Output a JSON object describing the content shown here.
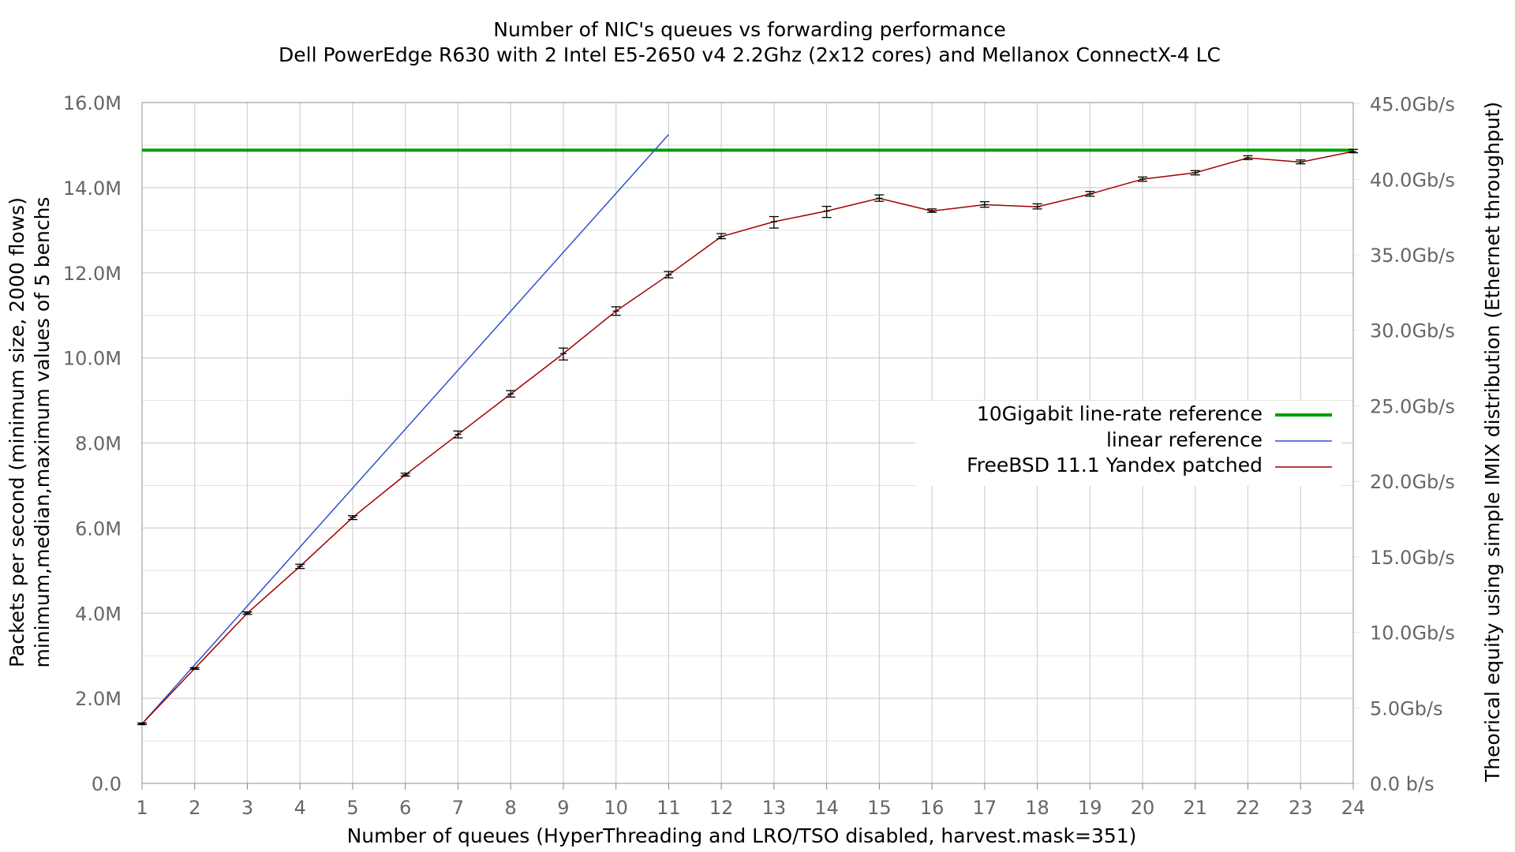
{
  "chart_data": {
    "type": "line",
    "title": "Number of NIC's queues vs forwarding performance",
    "subtitle": "Dell PowerEdge R630 with 2 Intel E5-2650 v4 2.2Ghz (2x12 cores) and Mellanox ConnectX-4 LC",
    "xlabel": "Number of queues (HyperThreading and LRO/TSO disabled, harvest.mask=351)",
    "ylabel": "Packets per second (minimum size, 2000 flows)",
    "ylabel2": "minimum,median,maximum values of 5 benchs",
    "y2label": "Theorical equity using simple IMIX distribution (Ethernet throughput)",
    "x_ticks": [
      "1",
      "2",
      "3",
      "4",
      "5",
      "6",
      "7",
      "8",
      "9",
      "10",
      "11",
      "12",
      "13",
      "14",
      "15",
      "16",
      "17",
      "18",
      "19",
      "20",
      "21",
      "22",
      "23",
      "24"
    ],
    "y_ticks": [
      "0.0",
      "2.0M",
      "4.0M",
      "6.0M",
      "8.0M",
      "10.0M",
      "12.0M",
      "14.0M",
      "16.0M"
    ],
    "y2_ticks": [
      "0.0 b/s",
      "5.0Gb/s",
      "10.0Gb/s",
      "15.0Gb/s",
      "20.0Gb/s",
      "25.0Gb/s",
      "30.0Gb/s",
      "35.0Gb/s",
      "40.0Gb/s",
      "45.0Gb/s"
    ],
    "xlim": [
      1,
      24
    ],
    "ylim": [
      0,
      16000000
    ],
    "y2lim": [
      0,
      45
    ],
    "grid": true,
    "legend_position": "right",
    "series": [
      {
        "name": "10Gigabit line-rate reference",
        "color": "#00a000",
        "x": [
          1,
          24
        ],
        "y": [
          14880000,
          14880000
        ]
      },
      {
        "name": "linear reference",
        "color": "#3050d0",
        "x": [
          1,
          11
        ],
        "y": [
          1400000,
          15250000
        ]
      },
      {
        "name": "FreeBSD 11.1 Yandex patched",
        "color": "#a00000",
        "x": [
          1,
          2,
          3,
          4,
          5,
          6,
          7,
          8,
          9,
          10,
          11,
          12,
          13,
          14,
          15,
          16,
          17,
          18,
          19,
          20,
          21,
          22,
          23,
          24
        ],
        "y": [
          1400000,
          2700000,
          4000000,
          5100000,
          6250000,
          7250000,
          8200000,
          9150000,
          10100000,
          11100000,
          11950000,
          12850000,
          13200000,
          13450000,
          13750000,
          13450000,
          13600000,
          13550000,
          13850000,
          14200000,
          14350000,
          14700000,
          14600000,
          14850000
        ],
        "y_min": [
          1380000,
          2680000,
          3970000,
          5050000,
          6200000,
          7220000,
          8120000,
          9080000,
          9950000,
          11000000,
          11880000,
          12800000,
          13050000,
          13300000,
          13680000,
          13420000,
          13540000,
          13500000,
          13800000,
          14150000,
          14300000,
          14660000,
          14560000,
          14820000
        ],
        "y_max": [
          1420000,
          2720000,
          4030000,
          5150000,
          6290000,
          7290000,
          8280000,
          9230000,
          10230000,
          11200000,
          12030000,
          12920000,
          13320000,
          13560000,
          13830000,
          13500000,
          13670000,
          13620000,
          13910000,
          14250000,
          14400000,
          14750000,
          14650000,
          14900000
        ]
      }
    ]
  }
}
